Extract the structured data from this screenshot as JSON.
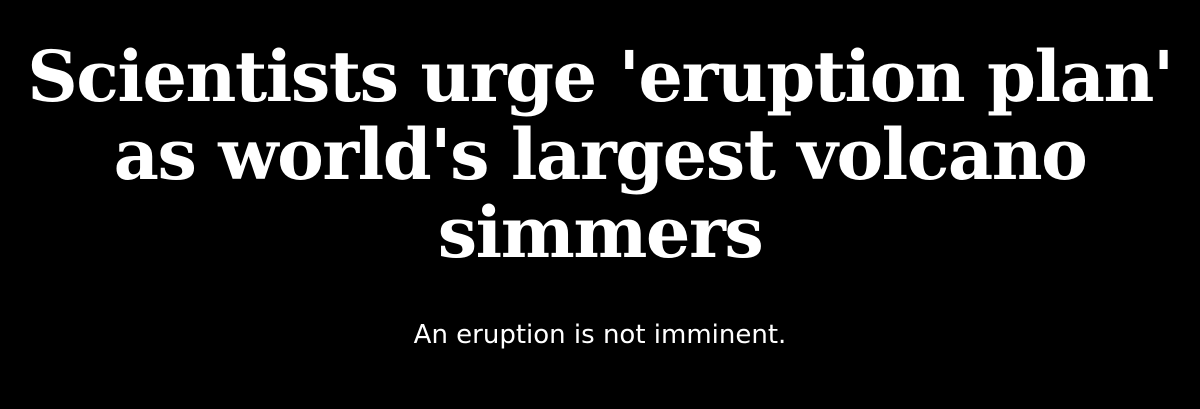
{
  "article": {
    "headline_lines": [
      "Scientists urge 'eruption plan'",
      "as world's largest volcano",
      "simmers"
    ],
    "subheadline": "An eruption is not imminent."
  },
  "colors": {
    "background": "#000000",
    "text": "#ffffff"
  }
}
